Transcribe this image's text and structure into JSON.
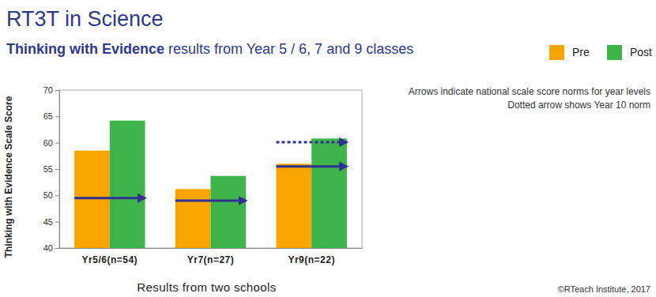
{
  "chart_data": {
    "type": "bar",
    "title": "RT3T in Science",
    "subtitle": [
      "Thinking with Evidence",
      " results from Year 5 / 6, 7 and 9 classes"
    ],
    "categories": [
      "Yr5/6(n=54)",
      "Yr7(n=27)",
      "Yr9(n=22)"
    ],
    "series": [
      {
        "name": "Pre",
        "color": "#f7a400",
        "values": [
          58.5,
          51.2,
          56.0
        ]
      },
      {
        "name": "Post",
        "color": "#3db54a",
        "values": [
          64.2,
          53.7,
          60.8
        ]
      }
    ],
    "norms": [
      49.5,
      49.0,
      55.5
    ],
    "year10_norm": [
      null,
      null,
      60.1
    ],
    "ylim": [
      40,
      70
    ],
    "yticks": [
      40,
      45,
      50,
      55,
      60,
      65,
      70
    ],
    "y_label": "Thinking with Evidence Scale Score",
    "x_label": "Results from two schools",
    "annotations": [
      "Arrows indicate national scale score norms for year levels",
      "Dotted arrow shows Year 10 norm",
      "©RTeach Institute, 2017"
    ],
    "legend": "top-right",
    "grid": false
  }
}
